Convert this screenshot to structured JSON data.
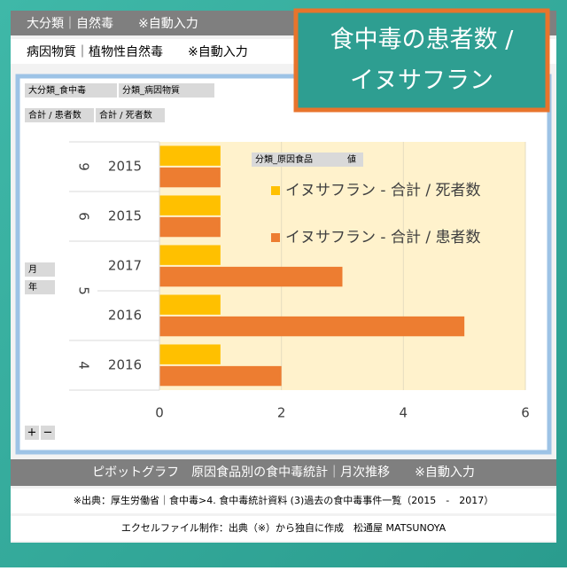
{
  "header": {
    "category": "大分類｜自然毒　　※自動入力",
    "agent": "病因物質｜植物性自然毒　　※自動入力"
  },
  "callout": {
    "line1": "食中毒の患者数 /",
    "line2": "イヌサフラン"
  },
  "pivot": {
    "filter1": "大分類_食中毒",
    "filter2": "分類_病因物質",
    "value1": "合計 / 患者数",
    "value2": "合計 / 死者数",
    "legend_field": "分類_原因食品",
    "legend_value": "値",
    "row_field1": "月",
    "row_field2": "年",
    "expand": "+",
    "collapse": "−"
  },
  "footer": {
    "title": "ピボットグラフ　原因食品別の食中毒統計｜月次推移　　※自動入力",
    "source": "※出典：厚生労働省｜食中毒>4. 食中毒統計資料 (3)過去の食中毒事件一覧（2015　-　2017）",
    "credit": "エクセルファイル制作：出典（※）から独自に作成　松通屋 MATSUNOYA"
  },
  "chart_data": {
    "type": "barh",
    "categories": [
      "2015",
      "2015",
      "2017",
      "2016",
      "2016"
    ],
    "groups": [
      "9",
      "6",
      "5",
      "5",
      "4"
    ],
    "series": [
      {
        "name": "イヌサフラン - 合計 / 死者数",
        "color": "#ffc000",
        "values": [
          1,
          1,
          1,
          1,
          1
        ]
      },
      {
        "name": "イヌサフラン - 合計 / 患者数",
        "color": "#ed7d31",
        "values": [
          1,
          1,
          3,
          5,
          2
        ]
      }
    ],
    "xlim": [
      0,
      6
    ],
    "xticks": [
      0,
      2,
      4,
      6
    ],
    "grid": true
  }
}
